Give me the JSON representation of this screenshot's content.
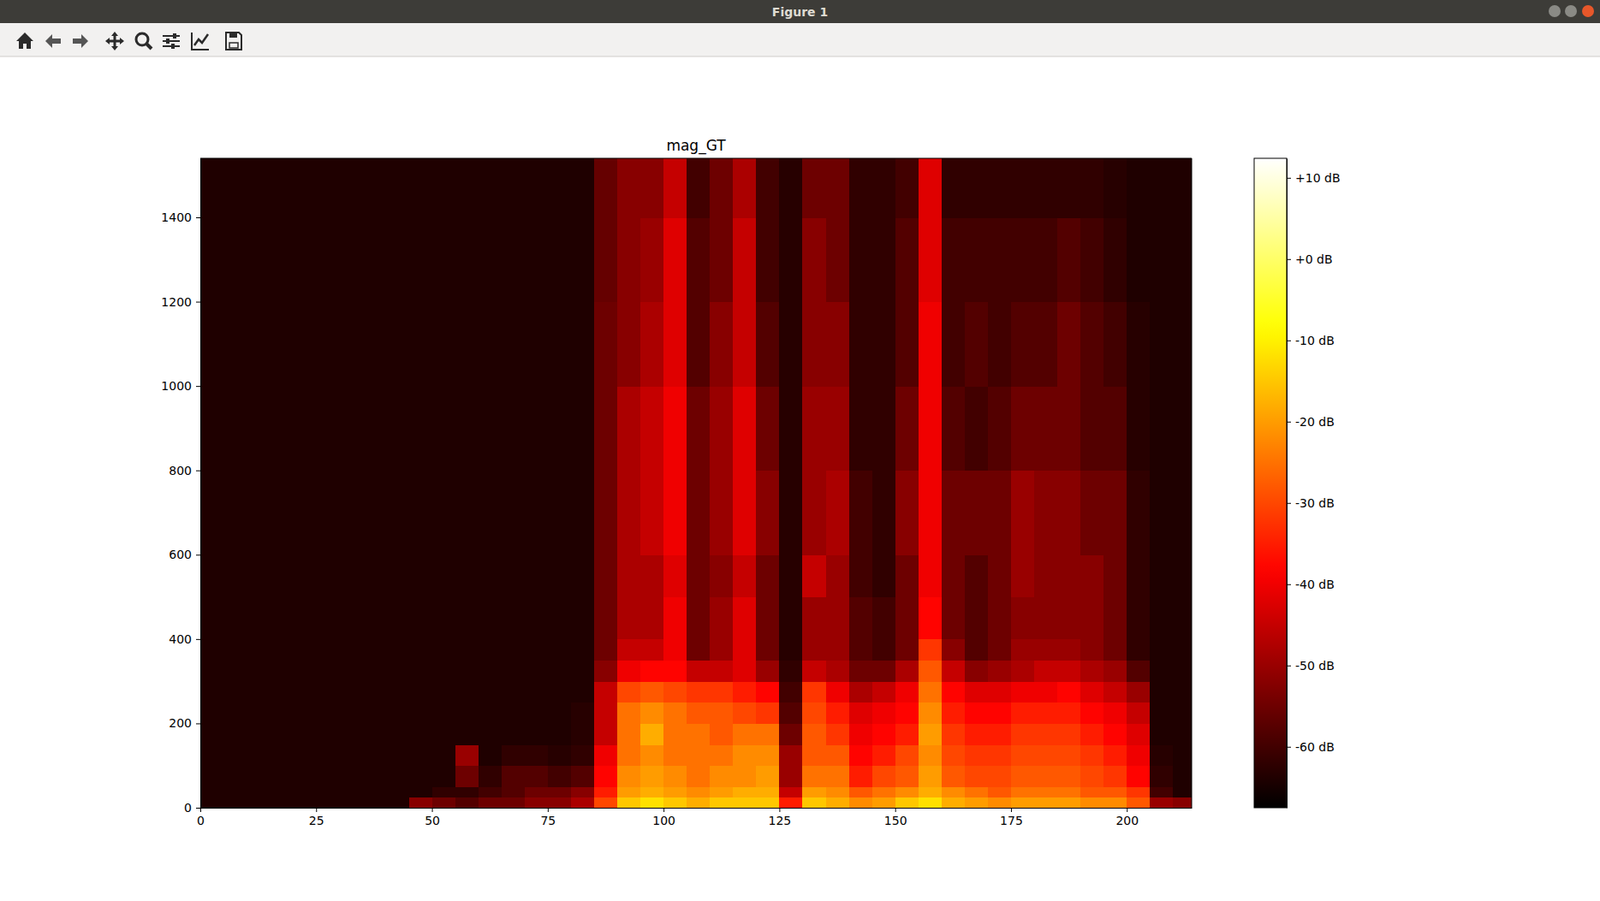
{
  "window": {
    "title": "Figure 1"
  },
  "chart_data": {
    "type": "heatmap",
    "title": "mag_GT",
    "xlim": [
      0,
      214
    ],
    "ylim": [
      0,
      1540
    ],
    "xticks": [
      0,
      25,
      50,
      75,
      100,
      125,
      150,
      175,
      200
    ],
    "yticks": [
      0,
      200,
      400,
      600,
      800,
      1000,
      1200,
      1400
    ],
    "x_bins": [
      0,
      5,
      10,
      15,
      20,
      25,
      30,
      35,
      40,
      45,
      50,
      55,
      60,
      65,
      70,
      75,
      80,
      85,
      90,
      95,
      100,
      105,
      110,
      115,
      120,
      125,
      130,
      135,
      140,
      145,
      150,
      155,
      160,
      165,
      170,
      175,
      180,
      185,
      190,
      195,
      200,
      205,
      210,
      214
    ],
    "y_bins": [
      0,
      25,
      50,
      100,
      150,
      200,
      250,
      300,
      350,
      400,
      500,
      600,
      800,
      1000,
      1200,
      1400,
      1540
    ],
    "values": [
      [
        -64,
        -64,
        -64,
        -64,
        -64,
        -64,
        -64,
        -64,
        -64,
        -64,
        -64,
        -64,
        -64,
        -64,
        -64,
        -64
      ],
      [
        -64,
        -64,
        -64,
        -64,
        -64,
        -64,
        -64,
        -64,
        -64,
        -64,
        -64,
        -64,
        -64,
        -64,
        -64,
        -64
      ],
      [
        -64,
        -64,
        -64,
        -64,
        -64,
        -64,
        -64,
        -64,
        -64,
        -64,
        -64,
        -64,
        -64,
        -64,
        -64,
        -64
      ],
      [
        -64,
        -64,
        -64,
        -64,
        -64,
        -64,
        -64,
        -64,
        -64,
        -64,
        -64,
        -64,
        -64,
        -64,
        -64,
        -64
      ],
      [
        -64,
        -64,
        -64,
        -64,
        -64,
        -64,
        -64,
        -64,
        -64,
        -64,
        -64,
        -64,
        -64,
        -64,
        -64,
        -64
      ],
      [
        -64,
        -64,
        -64,
        -64,
        -64,
        -64,
        -64,
        -64,
        -64,
        -64,
        -64,
        -64,
        -64,
        -64,
        -64,
        -64
      ],
      [
        -64,
        -64,
        -64,
        -64,
        -64,
        -64,
        -64,
        -64,
        -64,
        -64,
        -64,
        -64,
        -64,
        -64,
        -64,
        -64
      ],
      [
        -64,
        -64,
        -64,
        -64,
        -64,
        -64,
        -64,
        -64,
        -64,
        -64,
        -64,
        -64,
        -64,
        -64,
        -64,
        -64
      ],
      [
        -64,
        -64,
        -64,
        -64,
        -64,
        -64,
        -64,
        -64,
        -64,
        -64,
        -64,
        -64,
        -64,
        -64,
        -64,
        -64
      ],
      [
        -52,
        -64,
        -64,
        -64,
        -64,
        -64,
        -64,
        -64,
        -64,
        -64,
        -64,
        -64,
        -64,
        -64,
        -64,
        -64
      ],
      [
        -55,
        -62,
        -64,
        -64,
        -64,
        -64,
        -64,
        -64,
        -64,
        -64,
        -64,
        -64,
        -64,
        -64,
        -64,
        -64
      ],
      [
        -58,
        -62,
        -55,
        -50,
        -64,
        -64,
        -64,
        -64,
        -64,
        -64,
        -64,
        -64,
        -64,
        -64,
        -64,
        -64
      ],
      [
        -55,
        -60,
        -62,
        -64,
        -64,
        -64,
        -64,
        -64,
        -64,
        -64,
        -64,
        -64,
        -64,
        -64,
        -64,
        -64
      ],
      [
        -55,
        -58,
        -58,
        -62,
        -64,
        -64,
        -64,
        -64,
        -64,
        -64,
        -64,
        -64,
        -64,
        -64,
        -64,
        -64
      ],
      [
        -52,
        -55,
        -58,
        -62,
        -64,
        -64,
        -64,
        -64,
        -64,
        -64,
        -64,
        -64,
        -64,
        -64,
        -64,
        -64
      ],
      [
        -52,
        -55,
        -60,
        -63,
        -64,
        -64,
        -64,
        -64,
        -64,
        -64,
        -64,
        -64,
        -64,
        -64,
        -64,
        -64
      ],
      [
        -48,
        -52,
        -58,
        -62,
        -63,
        -63,
        -64,
        -64,
        -64,
        -64,
        -64,
        -64,
        -64,
        -64,
        -64,
        -64
      ],
      [
        -30,
        -35,
        -38,
        -40,
        -45,
        -45,
        -45,
        -52,
        -55,
        -55,
        -55,
        -55,
        -55,
        -55,
        -56,
        -56
      ],
      [
        -15,
        -20,
        -22,
        -25,
        -25,
        -25,
        -30,
        -40,
        -45,
        -48,
        -48,
        -48,
        -48,
        -52,
        -52,
        -52
      ],
      [
        -12,
        -18,
        -20,
        -22,
        -18,
        -22,
        -28,
        -38,
        -45,
        -48,
        -48,
        -45,
        -45,
        -48,
        -50,
        -52
      ],
      [
        -15,
        -20,
        -22,
        -25,
        -25,
        -25,
        -30,
        -38,
        -40,
        -40,
        -42,
        -40,
        -40,
        -42,
        -42,
        -45
      ],
      [
        -18,
        -22,
        -25,
        -25,
        -25,
        -28,
        -32,
        -45,
        -55,
        -55,
        -55,
        -55,
        -55,
        -58,
        -58,
        -60
      ],
      [
        -15,
        -20,
        -22,
        -25,
        -28,
        -28,
        -32,
        -45,
        -50,
        -50,
        -52,
        -50,
        -50,
        -52,
        -55,
        -55
      ],
      [
        -15,
        -18,
        -22,
        -22,
        -25,
        -30,
        -35,
        -42,
        -42,
        -42,
        -45,
        -42,
        -42,
        -45,
        -45,
        -48
      ],
      [
        -15,
        -18,
        -20,
        -22,
        -25,
        -32,
        -38,
        -50,
        -55,
        -55,
        -55,
        -52,
        -55,
        -58,
        -60,
        -60
      ],
      [
        -35,
        -45,
        -50,
        -50,
        -55,
        -58,
        -60,
        -62,
        -63,
        -63,
        -63,
        -63,
        -63,
        -63,
        -63,
        -63
      ],
      [
        -15,
        -20,
        -25,
        -28,
        -28,
        -30,
        -32,
        -45,
        -50,
        -50,
        -45,
        -50,
        -50,
        -52,
        -52,
        -55
      ],
      [
        -18,
        -22,
        -25,
        -28,
        -32,
        -35,
        -40,
        -48,
        -50,
        -50,
        -50,
        -48,
        -50,
        -52,
        -55,
        -55
      ],
      [
        -22,
        -28,
        -35,
        -38,
        -40,
        -42,
        -48,
        -55,
        -58,
        -58,
        -60,
        -60,
        -62,
        -62,
        -62,
        -62
      ],
      [
        -20,
        -25,
        -30,
        -35,
        -38,
        -40,
        -45,
        -55,
        -60,
        -60,
        -62,
        -62,
        -62,
        -62,
        -62,
        -62
      ],
      [
        -15,
        -22,
        -28,
        -30,
        -35,
        -38,
        -40,
        -48,
        -55,
        -55,
        -55,
        -52,
        -55,
        -58,
        -58,
        -60
      ],
      [
        -12,
        -18,
        -20,
        -22,
        -20,
        -22,
        -25,
        -28,
        -32,
        -38,
        -40,
        -40,
        -40,
        -40,
        -42,
        -42
      ],
      [
        -18,
        -22,
        -28,
        -30,
        -32,
        -35,
        -38,
        -45,
        -52,
        -55,
        -55,
        -55,
        -58,
        -60,
        -60,
        -62
      ],
      [
        -20,
        -25,
        -30,
        -32,
        -35,
        -38,
        -42,
        -52,
        -58,
        -58,
        -58,
        -55,
        -60,
        -58,
        -60,
        -62
      ],
      [
        -22,
        -28,
        -30,
        -32,
        -35,
        -38,
        -42,
        -50,
        -55,
        -55,
        -55,
        -55,
        -58,
        -60,
        -60,
        -62
      ],
      [
        -20,
        -25,
        -28,
        -30,
        -32,
        -35,
        -40,
        -48,
        -50,
        -52,
        -50,
        -50,
        -55,
        -58,
        -60,
        -62
      ],
      [
        -20,
        -25,
        -28,
        -30,
        -32,
        -35,
        -40,
        -45,
        -50,
        -52,
        -52,
        -52,
        -55,
        -58,
        -60,
        -62
      ],
      [
        -20,
        -25,
        -28,
        -30,
        -32,
        -35,
        -38,
        -45,
        -50,
        -52,
        -52,
        -52,
        -55,
        -55,
        -58,
        -62
      ],
      [
        -22,
        -28,
        -30,
        -32,
        -35,
        -38,
        -42,
        -48,
        -52,
        -52,
        -52,
        -55,
        -58,
        -58,
        -60,
        -62
      ],
      [
        -22,
        -28,
        -32,
        -35,
        -38,
        -40,
        -45,
        -50,
        -55,
        -55,
        -55,
        -55,
        -58,
        -60,
        -62,
        -63
      ],
      [
        -28,
        -32,
        -38,
        -40,
        -42,
        -45,
        -50,
        -58,
        -62,
        -62,
        -62,
        -62,
        -63,
        -63,
        -64,
        -64
      ],
      [
        -50,
        -60,
        -62,
        -63,
        -64,
        -64,
        -64,
        -64,
        -64,
        -64,
        -64,
        -64,
        -64,
        -64,
        -64,
        -64
      ],
      [
        -52,
        -64,
        -64,
        -64,
        -64,
        -64,
        -64,
        -64,
        -64,
        -64,
        -64,
        -64,
        -64,
        -64,
        -64,
        -64
      ]
    ],
    "colorbar_range": [
      -67.5,
      12.4
    ],
    "colorbar_ticks": [
      {
        "value": 10,
        "label": "+10 dB"
      },
      {
        "value": 0,
        "label": "+0 dB"
      },
      {
        "value": -10,
        "label": "-10 dB"
      },
      {
        "value": -20,
        "label": "-20 dB"
      },
      {
        "value": -30,
        "label": "-30 dB"
      },
      {
        "value": -40,
        "label": "-40 dB"
      },
      {
        "value": -50,
        "label": "-50 dB"
      },
      {
        "value": -60,
        "label": "-60 dB"
      }
    ],
    "grid": false
  }
}
